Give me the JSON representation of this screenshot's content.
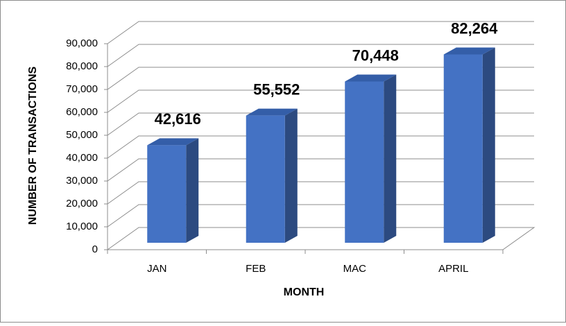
{
  "chart_data": {
    "type": "bar3d",
    "x_label": "MONTH",
    "y_label": "NUMBER OF TRANSACTIONS",
    "categories": [
      "JAN",
      "FEB",
      "MAC",
      "APRIL"
    ],
    "values": [
      42616,
      55552,
      70448,
      82264
    ],
    "value_labels": [
      "42,616",
      "55,552",
      "70,448",
      "82,264"
    ],
    "color": "#4472c4",
    "ylim": [
      0,
      90000
    ],
    "yticks": [
      0,
      {
        "value": 10000,
        "label": "10,000"
      },
      {
        "value": 20000,
        "label": "20,000"
      },
      {
        "value": 30000,
        "label": "30,000"
      },
      {
        "value": 40000,
        "label": "40,000"
      },
      {
        "value": 50000,
        "label": "50,000"
      },
      {
        "value": 60000,
        "label": "60,000"
      },
      {
        "value": 70000,
        "label": "70,000"
      },
      {
        "value": 80000,
        "label": "80,000"
      },
      {
        "value": 90000,
        "label": "90,000"
      }
    ],
    "grid": true
  }
}
